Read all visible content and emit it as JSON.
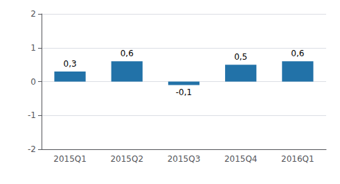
{
  "chart_data": {
    "type": "bar",
    "categories": [
      "2015Q1",
      "2015Q2",
      "2015Q3",
      "2015Q4",
      "2016Q1"
    ],
    "values": [
      0.3,
      0.6,
      -0.1,
      0.5,
      0.6
    ],
    "value_labels": [
      "0,3",
      "0,6",
      "-0,1",
      "0,5",
      "0,6"
    ],
    "color": "#2272a8",
    "ylim": [
      -2.0,
      2.0
    ],
    "yticks": [
      -2,
      -1,
      0,
      1,
      2
    ],
    "grid": true,
    "data_labels": true
  }
}
